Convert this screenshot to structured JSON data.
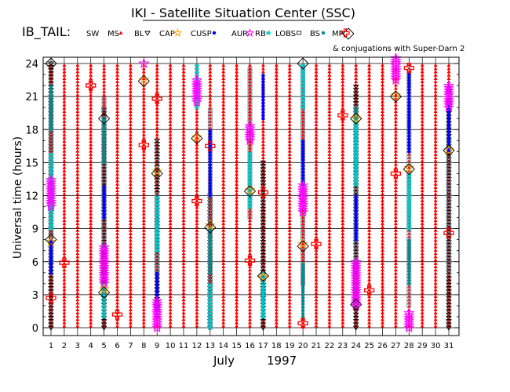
{
  "chart_data": {
    "type": "scatter",
    "title": "IKI - Satellite Situation Center (SSC)",
    "subtitle": "IB_TAIL:",
    "ylabel": "Universal time (hours)",
    "xlabel_month": "July",
    "xlabel_year": "1997",
    "ylim": [
      0,
      24
    ],
    "xlim": [
      1,
      31
    ],
    "yticks": [
      "0",
      "3",
      "6",
      "9",
      "12",
      "15",
      "18",
      "21",
      "24"
    ],
    "xticks": [
      "1",
      "2",
      "3",
      "4",
      "5",
      "6",
      "7",
      "8",
      "9",
      "10",
      "11",
      "12",
      "13",
      "14",
      "15",
      "16",
      "17",
      "18",
      "19",
      "20",
      "21",
      "22",
      "23",
      "24",
      "25",
      "26",
      "27",
      "28",
      "29",
      "30",
      "31"
    ],
    "grid": true,
    "legend_placement": "top",
    "legend": [
      {
        "label": "SW",
        "marker": "none",
        "color": "#000000"
      },
      {
        "label": "MS",
        "marker": "triangle-up",
        "color": "#ff0000"
      },
      {
        "label": "BL",
        "marker": "triangle-down",
        "color": "#000000"
      },
      {
        "label": "CAP",
        "marker": "star",
        "color": "#ffa500"
      },
      {
        "label": "CUSP",
        "marker": "dot",
        "color": "#0000ff"
      },
      {
        "label": "AUR",
        "marker": "star",
        "color": "#ff00ff"
      },
      {
        "label": "RB",
        "marker": "asterisk",
        "color": "#00cccc"
      },
      {
        "label": "LOBS",
        "marker": "square",
        "color": "#000000"
      },
      {
        "label": "BS",
        "marker": "dot",
        "color": "#008b8b"
      },
      {
        "label": "MP",
        "marker": "cross",
        "color": "#ff0000"
      }
    ],
    "conjugation_note": "& conjugations with Super-Darn 2",
    "conjugation_marker": "diamond",
    "colors": {
      "MS": "#ff0000",
      "BL": "#000000",
      "CAP": "#ffa500",
      "CUSP": "#0000ff",
      "AUR": "#ff00ff",
      "RB": "#00cccc",
      "LOBS": "#708090",
      "BS": "#008b8b",
      "MP": "#ff0000",
      "conjugation": "#000000"
    },
    "ms_days": [
      1,
      2,
      3,
      4,
      5,
      6,
      7,
      8,
      9,
      10,
      11,
      12,
      13,
      14,
      15,
      16,
      17,
      18,
      19,
      20,
      21,
      22,
      23,
      24,
      25,
      26,
      27,
      28,
      29,
      30,
      31
    ],
    "series": [
      {
        "name": "BL",
        "segments": [
          [
            1,
            0,
            24
          ],
          [
            5,
            0,
            20
          ],
          [
            9,
            2,
            17
          ],
          [
            13,
            0,
            12
          ],
          [
            17,
            0,
            15
          ],
          [
            24,
            0,
            22
          ],
          [
            31,
            0,
            20
          ]
        ]
      },
      {
        "name": "LOBS",
        "segments": [
          [
            1,
            6,
            21
          ],
          [
            5,
            7,
            21
          ],
          [
            9,
            5,
            12
          ],
          [
            13,
            0,
            20
          ],
          [
            16,
            10,
            23.5
          ],
          [
            20,
            4,
            24
          ],
          [
            24,
            2,
            20
          ],
          [
            28,
            2,
            24
          ],
          [
            31,
            5,
            17
          ]
        ]
      },
      {
        "name": "CUSP",
        "segments": [
          [
            1,
            5,
            8
          ],
          [
            5,
            10,
            13
          ],
          [
            9,
            1,
            5
          ],
          [
            13,
            12,
            18
          ],
          [
            17,
            19,
            23
          ],
          [
            20,
            13,
            17
          ],
          [
            24,
            8,
            12
          ],
          [
            28,
            16,
            23
          ],
          [
            31,
            16,
            22
          ]
        ]
      },
      {
        "name": "RB",
        "segments": [
          [
            1,
            9,
            16
          ],
          [
            5,
            1,
            4
          ],
          [
            9,
            7,
            12
          ],
          [
            12,
            20,
            24
          ],
          [
            13,
            0,
            4
          ],
          [
            16,
            11,
            16
          ],
          [
            17,
            1,
            5
          ],
          [
            20,
            20,
            24
          ],
          [
            24,
            13,
            19
          ],
          [
            28,
            9,
            14
          ]
        ]
      },
      {
        "name": "BS",
        "segments": [
          [
            1,
            18,
            22
          ],
          [
            5,
            15,
            19
          ],
          [
            13,
            5,
            9
          ],
          [
            17,
            1,
            4
          ],
          [
            20,
            1,
            6
          ],
          [
            24,
            14,
            20
          ],
          [
            28,
            4,
            8
          ]
        ]
      },
      {
        "name": "AUR",
        "segments": [
          [
            1,
            11,
            13.5
          ],
          [
            5,
            4,
            7.5
          ],
          [
            8,
            24,
            24.2
          ],
          [
            9,
            0,
            2.5
          ],
          [
            12,
            20.5,
            22.5
          ],
          [
            16,
            17,
            18.5
          ],
          [
            20,
            10.5,
            13
          ],
          [
            24,
            2,
            6
          ],
          [
            27,
            22.5,
            24.5
          ],
          [
            28,
            0,
            1.5
          ],
          [
            31,
            20,
            22
          ]
        ]
      },
      {
        "name": "MP",
        "points": [
          [
            1,
            2.7
          ],
          [
            2,
            5.9
          ],
          [
            4,
            22
          ],
          [
            6,
            1.2
          ],
          [
            8,
            16.6
          ],
          [
            9,
            20.8
          ],
          [
            12,
            11.5
          ],
          [
            13,
            16.5
          ],
          [
            16,
            6.1
          ],
          [
            17,
            12.3
          ],
          [
            20,
            0.4
          ],
          [
            21,
            7.6
          ],
          [
            23,
            19.3
          ],
          [
            25,
            3.4
          ],
          [
            27,
            14
          ],
          [
            28,
            23.6
          ],
          [
            31,
            8.6
          ]
        ]
      },
      {
        "name": "CAP",
        "points": [
          [
            1,
            7.8
          ],
          [
            5,
            3.5
          ],
          [
            8,
            22.5
          ],
          [
            9,
            14.2
          ],
          [
            12,
            17.3
          ],
          [
            13,
            9.3
          ],
          [
            16,
            12.5
          ],
          [
            17,
            4.6
          ],
          [
            20,
            7.6
          ],
          [
            24,
            19
          ],
          [
            27,
            21.1
          ],
          [
            28,
            14.5
          ],
          [
            31,
            16.1
          ]
        ]
      },
      {
        "name": "conjugations",
        "points": [
          [
            1,
            24
          ],
          [
            1,
            8
          ],
          [
            5,
            19
          ],
          [
            5,
            3.2
          ],
          [
            8,
            22.4
          ],
          [
            9,
            14
          ],
          [
            12,
            17.2
          ],
          [
            13,
            9.1
          ],
          [
            16,
            12.4
          ],
          [
            17,
            4.7
          ],
          [
            20,
            24
          ],
          [
            20,
            7.4
          ],
          [
            24,
            19
          ],
          [
            24,
            2.1
          ],
          [
            27,
            21
          ],
          [
            28,
            14.4
          ],
          [
            31,
            16.1
          ]
        ]
      }
    ]
  }
}
